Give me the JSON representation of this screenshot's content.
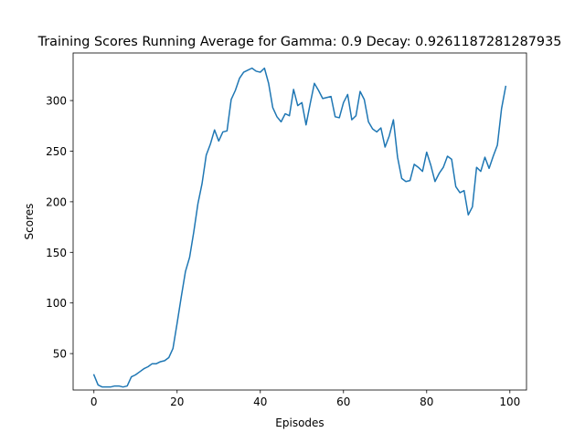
{
  "chart_data": {
    "type": "line",
    "title": "Training Scores Running Average for Gamma: 0.9 Decay: 0.9261187281287935",
    "xlabel": "Episodes",
    "ylabel": "Scores",
    "xlim": [
      -5,
      104
    ],
    "ylim": [
      14,
      347
    ],
    "xticks": [
      0,
      20,
      40,
      60,
      80,
      100
    ],
    "yticks": [
      50,
      100,
      150,
      200,
      250,
      300
    ],
    "grid": false,
    "legend": "none",
    "line_color": "#1f77b4",
    "series": [
      {
        "x": [
          0,
          1,
          2,
          3,
          4,
          5,
          6,
          7,
          8,
          9,
          10,
          11,
          12,
          13,
          14,
          15,
          16,
          17,
          18,
          19,
          20,
          21,
          22,
          23,
          24,
          25,
          26,
          27,
          28,
          29,
          30,
          31,
          32,
          33,
          34,
          35,
          36,
          37,
          38,
          39,
          40,
          41,
          42,
          43,
          44,
          45,
          46,
          47,
          48,
          49,
          50,
          51,
          52,
          53,
          54,
          55,
          56,
          57,
          58,
          59,
          60,
          61,
          62,
          63,
          64,
          65,
          66,
          67,
          68,
          69,
          70,
          71,
          72,
          73,
          74,
          75,
          76,
          77,
          78,
          79,
          80,
          81,
          82,
          83,
          84,
          85,
          86,
          87,
          88,
          89,
          90,
          91,
          92,
          93,
          94,
          95,
          96,
          97,
          98,
          99
        ],
        "values": [
          29,
          19,
          17,
          17,
          17,
          18,
          18,
          17,
          18,
          27,
          29,
          32,
          35,
          37,
          40,
          40,
          42,
          43,
          46,
          55,
          80,
          106,
          131,
          145,
          170,
          198,
          218,
          246,
          257,
          271,
          260,
          269,
          270,
          301,
          310,
          322,
          328,
          330,
          332,
          329,
          328,
          332,
          317,
          293,
          284,
          279,
          287,
          285,
          311,
          295,
          298,
          276,
          297,
          317,
          310,
          302,
          303,
          304,
          284,
          283,
          298,
          306,
          281,
          285,
          309,
          301,
          279,
          272,
          269,
          273,
          254,
          265,
          281,
          244,
          223,
          220,
          221,
          237,
          234,
          230,
          249,
          236,
          220,
          228,
          234,
          245,
          242,
          215,
          209,
          211,
          187,
          195,
          234,
          230,
          244,
          233,
          245,
          256,
          292,
          314
        ]
      }
    ]
  }
}
